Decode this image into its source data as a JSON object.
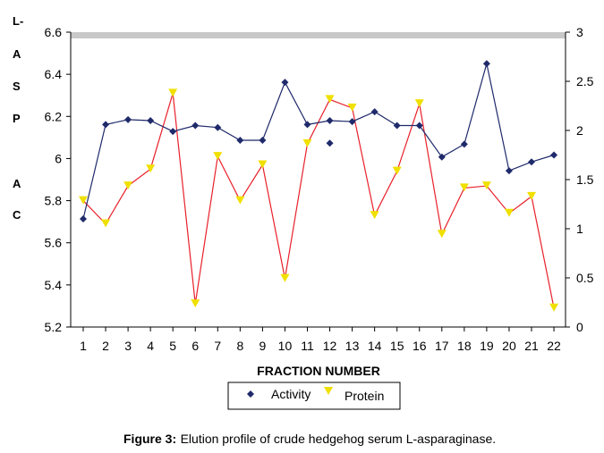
{
  "chart_data": {
    "type": "line",
    "title": "",
    "xlabel": "FRACTION NUMBER",
    "ylabel_left_letters": [
      "L-",
      "A",
      "S",
      "P",
      "A",
      "C"
    ],
    "categories": [
      "1",
      "2",
      "3",
      "4",
      "5",
      "6",
      "7",
      "8",
      "9",
      "10",
      "11",
      "12",
      "13",
      "14",
      "15",
      "16",
      "17",
      "18",
      "19",
      "20",
      "21",
      "22"
    ],
    "left_axis": {
      "ylim": [
        5.2,
        6.6
      ],
      "ticks": [
        5.2,
        5.4,
        5.6,
        5.8,
        6.0,
        6.2,
        6.4,
        6.6
      ],
      "tick_labels": [
        "5.2",
        "5.4",
        "5.6",
        "5.8",
        "6",
        "6.2",
        "6.4",
        "6.6"
      ]
    },
    "right_axis": {
      "ylim": [
        0,
        3
      ],
      "ticks": [
        0,
        0.5,
        1,
        1.5,
        2,
        2.5,
        3
      ],
      "tick_labels": [
        "0",
        "0.5",
        "1",
        "1.5",
        "2",
        "2.5",
        "3"
      ]
    },
    "series": [
      {
        "name": "Activity",
        "axis": "right",
        "color": "#1f2a6b",
        "marker": "diamond",
        "values": [
          1.1,
          2.06,
          2.11,
          2.1,
          1.99,
          2.05,
          2.03,
          1.9,
          1.9,
          2.49,
          2.06,
          2.1,
          2.09,
          2.19,
          2.05,
          2.05,
          1.73,
          1.86,
          2.68,
          1.59,
          1.68,
          1.75
        ],
        "extra_points": [
          {
            "x": "12",
            "y": 1.87
          }
        ]
      },
      {
        "name": "Protein",
        "axis": "left",
        "color": "#e8202a",
        "marker_color": "#f0e000",
        "marker": "triangle-down",
        "values": [
          5.8,
          5.69,
          5.87,
          5.95,
          6.31,
          5.31,
          6.01,
          5.8,
          5.97,
          5.43,
          6.07,
          6.28,
          6.24,
          5.73,
          5.94,
          6.26,
          5.64,
          5.86,
          5.87,
          5.74,
          5.82,
          5.29
        ]
      }
    ],
    "legend": {
      "position": "bottom-center",
      "entries": [
        "Activity",
        "Protein"
      ]
    }
  },
  "caption": {
    "label": "Figure 3:",
    "text": " Elution profile of crude hedgehog serum L-asparaginase."
  }
}
